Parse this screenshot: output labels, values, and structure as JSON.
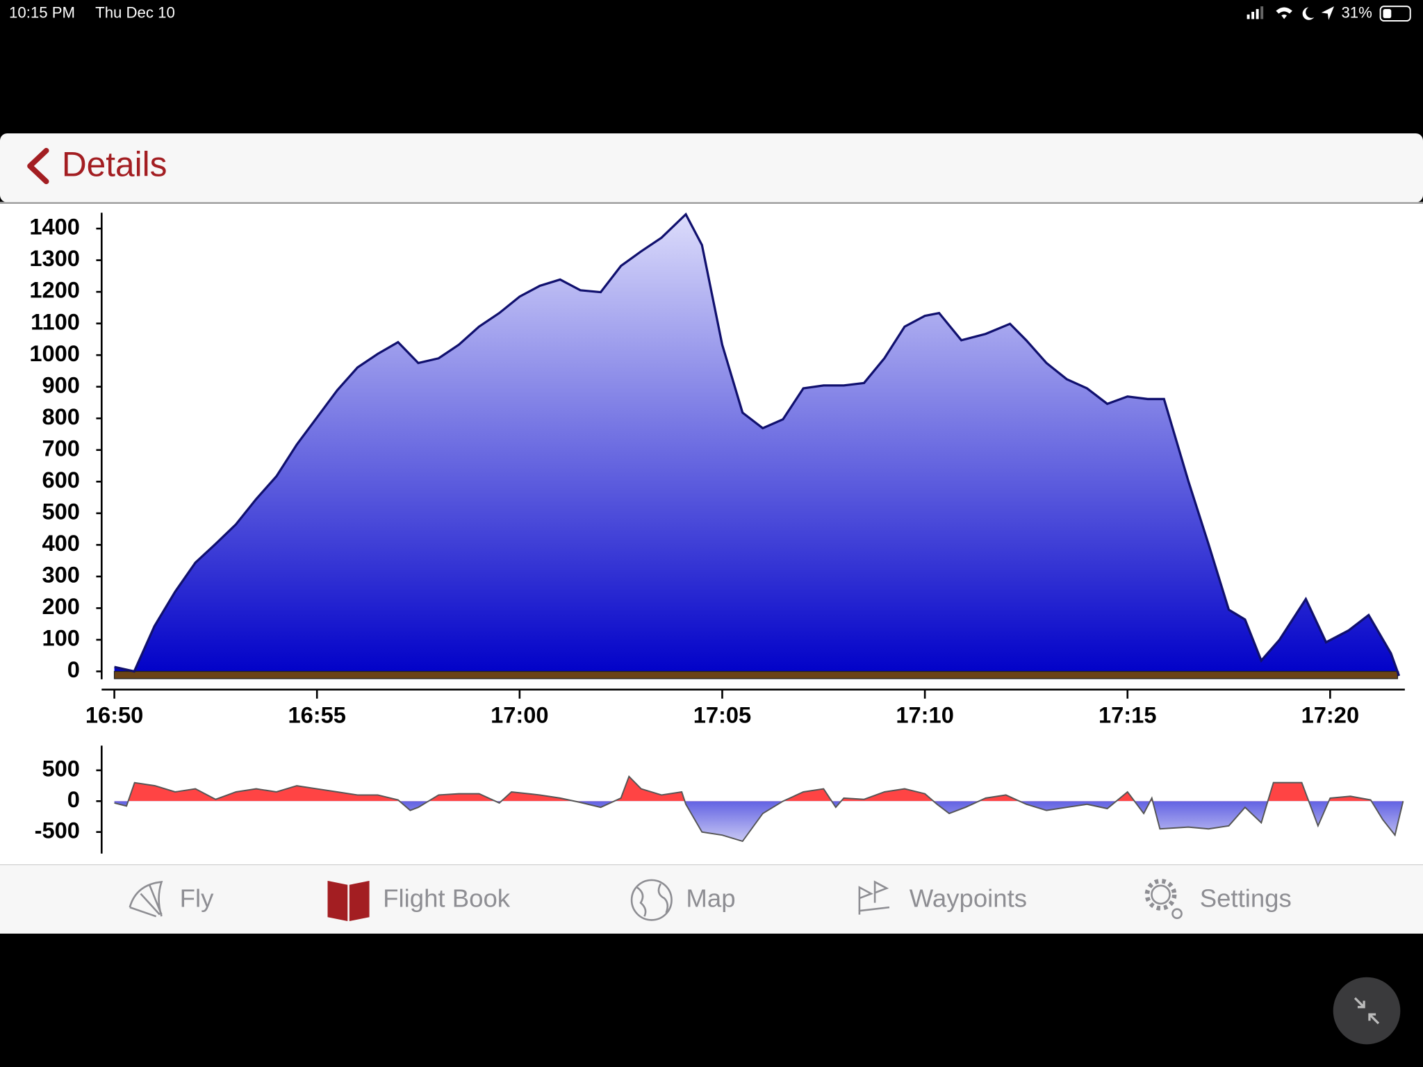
{
  "status_bar": {
    "time": "10:15 PM",
    "date": "Thu Dec 10",
    "battery": "31%"
  },
  "header": {
    "back": "Details"
  },
  "chart_data": [
    {
      "type": "area",
      "name": "altitude",
      "x": [
        1010,
        1010.49,
        1010.99,
        1011.5,
        1012,
        1012.49,
        1013,
        1013.5,
        1014,
        1014.5,
        1015,
        1015.5,
        1016,
        1016.5,
        1017,
        1017.5,
        1018,
        1018.5,
        1019,
        1019.5,
        1020,
        1020.5,
        1021,
        1021.5,
        1022,
        1022.5,
        1023,
        1023.5,
        1024.1,
        1024.5,
        1025,
        1025.5,
        1026,
        1026.5,
        1027,
        1027.5,
        1028,
        1028.5,
        1029,
        1029.5,
        1030,
        1030.35,
        1030.9,
        1031.5,
        1032.1,
        1032.5,
        1033,
        1033.5,
        1034,
        1034.5,
        1035,
        1035.5,
        1035.9,
        1036.5,
        1037,
        1037.5,
        1037.9,
        1038.3,
        1038.75,
        1039.4,
        1039.9,
        1040.45,
        1040.95,
        1041.5,
        1041.7
      ],
      "values": [
        14,
        0,
        143,
        252,
        344,
        402,
        465,
        545,
        617,
        717,
        803,
        889,
        961,
        1004,
        1041,
        975,
        990,
        1033,
        1090,
        1133,
        1185,
        1219,
        1239,
        1205,
        1199,
        1282,
        1328,
        1371,
        1445,
        1348,
        1033,
        818,
        769,
        797,
        895,
        904,
        904,
        912,
        990,
        1090,
        1124,
        1133,
        1047,
        1067,
        1099,
        1047,
        975,
        924,
        895,
        846,
        869,
        861,
        861,
        602,
        402,
        195,
        164,
        34,
        100,
        229,
        92,
        129,
        178,
        57,
        -14
      ],
      "color": "#10106e",
      "xlim": [
        1010,
        1042
      ],
      "ylim": [
        -25,
        1450
      ],
      "xticks": [
        {
          "value": 1010,
          "label": "16:50"
        },
        {
          "value": 1015,
          "label": "16:55"
        },
        {
          "value": 1020,
          "label": "17:00"
        },
        {
          "value": 1025,
          "label": "17:05"
        },
        {
          "value": 1030,
          "label": "17:10"
        },
        {
          "value": 1035,
          "label": "17:15"
        },
        {
          "value": 1040,
          "label": "17:20"
        }
      ],
      "yticks": [
        0,
        100,
        200,
        300,
        400,
        500,
        600,
        700,
        800,
        900,
        1000,
        1100,
        1200,
        1300,
        1400
      ]
    },
    {
      "type": "signed-area",
      "name": "vario",
      "x": [
        1010,
        1010.3,
        1010.5,
        1011,
        1011.5,
        1012,
        1012.5,
        1013,
        1013.5,
        1014,
        1014.5,
        1015,
        1015.5,
        1016,
        1016.5,
        1017,
        1017.3,
        1017.5,
        1018,
        1018.5,
        1019,
        1019.5,
        1019.8,
        1020.5,
        1021,
        1021.5,
        1022,
        1022.5,
        1022.7,
        1023,
        1023.5,
        1024,
        1024.1,
        1024.5,
        1025,
        1025.5,
        1026,
        1026.5,
        1027,
        1027.5,
        1027.8,
        1028,
        1028.5,
        1029,
        1029.5,
        1030,
        1030.3,
        1030.6,
        1031,
        1031.5,
        1032,
        1032.5,
        1033,
        1033.5,
        1034,
        1034.5,
        1035,
        1035.4,
        1035.6,
        1035.8,
        1036.5,
        1037,
        1037.5,
        1037.9,
        1038.3,
        1038.6,
        1039.3,
        1039.7,
        1040,
        1040.5,
        1041,
        1041.3,
        1041.6,
        1041.8
      ],
      "values": [
        -30,
        -80,
        300,
        250,
        150,
        200,
        30,
        150,
        200,
        150,
        250,
        200,
        150,
        100,
        100,
        20,
        -150,
        -100,
        100,
        120,
        120,
        -30,
        150,
        100,
        50,
        -20,
        -100,
        50,
        400,
        200,
        100,
        150,
        -50,
        -500,
        -550,
        -650,
        -200,
        0,
        150,
        200,
        -100,
        50,
        30,
        150,
        200,
        120,
        -50,
        -200,
        -100,
        50,
        100,
        -50,
        -150,
        -100,
        -50,
        -120,
        150,
        -200,
        50,
        -450,
        -420,
        -450,
        -400,
        -100,
        -350,
        300,
        300,
        -400,
        50,
        80,
        20,
        -300,
        -550,
        0
      ],
      "color": "#555555",
      "color_positive": "#ff4444",
      "color_negative": "#2424d8",
      "xlim": [
        1010,
        1042
      ],
      "ylim": [
        -850,
        900
      ],
      "yticks": [
        500,
        0,
        -500
      ]
    }
  ],
  "tab_bar": {
    "tabs": [
      "Fly",
      "Flight Book",
      "Map",
      "Waypoints",
      "Settings"
    ],
    "selected": 1
  }
}
